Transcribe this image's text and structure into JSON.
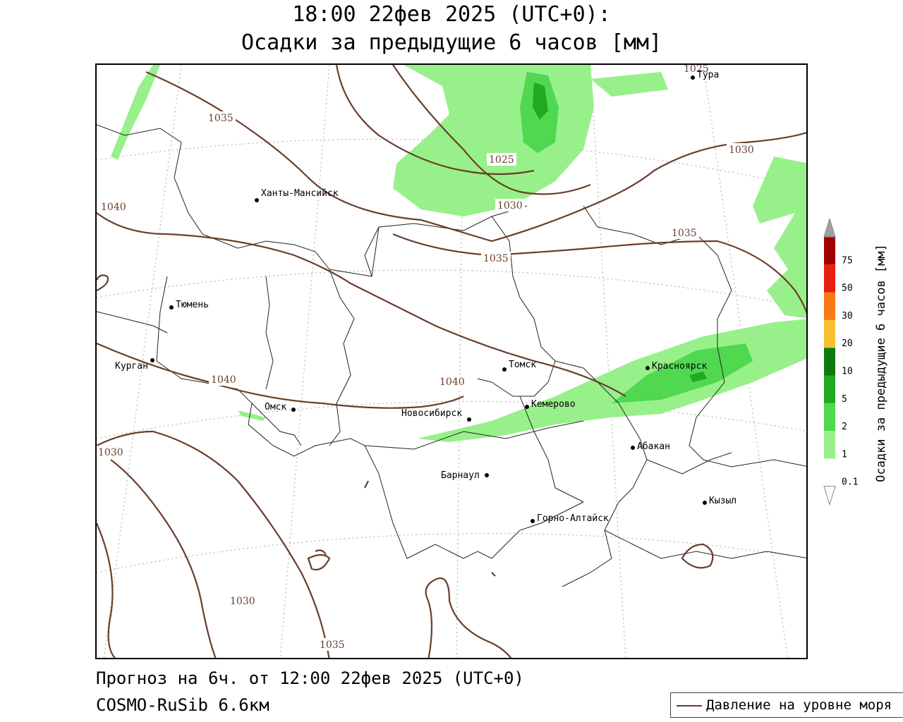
{
  "title": {
    "line1": "18:00 22фев 2025 (UTC+0):",
    "line2": "Осадки за предыдущие 6 часов [мм]"
  },
  "footer": {
    "forecast": "Прогноз на 6ч. от 12:00 22фев 2025 (UTC+0)",
    "model": "COSMO-RuSib 6.6км"
  },
  "legend": {
    "pressure_label": "Давление на уровне моря",
    "pressure_color": "#6a3d2a"
  },
  "colorbar": {
    "title": "Осадки за предыдущие 6 часов [мм]",
    "levels": [
      "0.1",
      "1",
      "2",
      "5",
      "10",
      "20",
      "30",
      "50",
      "75"
    ],
    "colors": [
      "#ffffff",
      "#98f08a",
      "#50d850",
      "#22a822",
      "#107a10",
      "#f8c030",
      "#f87818",
      "#e82010",
      "#a00000",
      "#a0a0a0"
    ]
  },
  "cities": {
    "tura": "Тура",
    "khanty": "Ханты-Мансийск",
    "tyumen": "Тюмень",
    "kurgan": "Курган",
    "omsk": "Омск",
    "novosibirsk": "Новосибирск",
    "tomsk": "Томск",
    "kemerovo": "Кемерово",
    "krasnoyarsk": "Красноярск",
    "abakan": "Абакан",
    "barnaul": "Барнаул",
    "gorno": "Горно-Алтайск",
    "kyzyl": "Кызыл"
  },
  "isobar_labels": {
    "a": "1035",
    "b": "1025",
    "c": "1025",
    "d": "1030",
    "e": "1040",
    "f": "1030",
    "g": "1035",
    "h": "1035",
    "i": "1040",
    "j": "1040",
    "k": "1030",
    "l": "1030",
    "m": "1035"
  }
}
